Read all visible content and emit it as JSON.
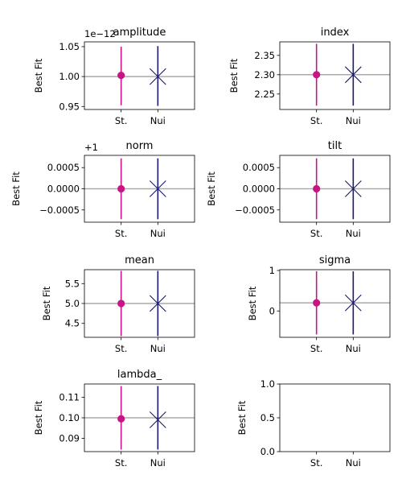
{
  "colors": {
    "standard": "#c71585",
    "nuisance": "#191970",
    "reference": "#aaaaaa",
    "axes": "#000000"
  },
  "chart_data": [
    {
      "type": "scatter",
      "title": "amplitude",
      "ylabel": "Best Fit",
      "categories": [
        "St.",
        "Nui"
      ],
      "reference": 1.0,
      "ylim": [
        0.945,
        1.058
      ],
      "offset_label": "1e−12",
      "yticks": [
        0.95,
        1.0,
        1.05
      ],
      "ytick_labels": [
        "0.95",
        "1.00",
        "1.05"
      ],
      "series": [
        {
          "name": "St.",
          "value": 1.002,
          "err_low": 0.952,
          "err_high": 1.05
        },
        {
          "name": "Nui",
          "value": 1.0,
          "err_low": 0.951,
          "err_high": 1.051
        }
      ]
    },
    {
      "type": "scatter",
      "title": "index",
      "ylabel": "Best Fit",
      "categories": [
        "St.",
        "Nui"
      ],
      "reference": 2.3,
      "ylim": [
        2.21,
        2.385
      ],
      "yticks": [
        2.25,
        2.3,
        2.35
      ],
      "ytick_labels": [
        "2.25",
        "2.30",
        "2.35"
      ],
      "series": [
        {
          "name": "St.",
          "value": 2.3,
          "err_low": 2.22,
          "err_high": 2.38
        },
        {
          "name": "Nui",
          "value": 2.3,
          "err_low": 2.22,
          "err_high": 2.38
        }
      ]
    },
    {
      "type": "scatter",
      "title": "norm",
      "ylabel": "Best Fit",
      "categories": [
        "St.",
        "Nui"
      ],
      "reference": 0.0,
      "ylim": [
        -0.00079,
        0.00079
      ],
      "offset_label": "+1",
      "yticks": [
        -0.0005,
        0.0,
        0.0005
      ],
      "ytick_labels": [
        "−0.0005",
        "0.0000",
        "0.0005"
      ],
      "series": [
        {
          "name": "St.",
          "value": 0.0,
          "err_low": -0.00072,
          "err_high": 0.00072
        },
        {
          "name": "Nui",
          "value": 0.0,
          "err_low": -0.00072,
          "err_high": 0.00072
        }
      ]
    },
    {
      "type": "scatter",
      "title": "tilt",
      "ylabel": "Best Fit",
      "categories": [
        "St.",
        "Nui"
      ],
      "reference": 0.0,
      "ylim": [
        -0.00079,
        0.00079
      ],
      "yticks": [
        -0.0005,
        0.0,
        0.0005
      ],
      "ytick_labels": [
        "−0.0005",
        "0.0000",
        "0.0005"
      ],
      "series": [
        {
          "name": "St.",
          "value": 0.0,
          "err_low": -0.00072,
          "err_high": 0.00072
        },
        {
          "name": "Nui",
          "value": 0.0,
          "err_low": -0.00072,
          "err_high": 0.00072
        }
      ]
    },
    {
      "type": "scatter",
      "title": "mean",
      "ylabel": "Best Fit",
      "categories": [
        "St.",
        "Nui"
      ],
      "reference": 5.0,
      "ylim": [
        4.15,
        5.85
      ],
      "yticks": [
        4.5,
        5.0,
        5.5
      ],
      "ytick_labels": [
        "4.5",
        "5.0",
        "5.5"
      ],
      "series": [
        {
          "name": "St.",
          "value": 5.0,
          "err_low": 4.18,
          "err_high": 5.82
        },
        {
          "name": "Nui",
          "value": 5.0,
          "err_low": 4.18,
          "err_high": 5.82
        }
      ]
    },
    {
      "type": "scatter",
      "title": "sigma",
      "ylabel": "Best Fit",
      "categories": [
        "St.",
        "Nui"
      ],
      "reference": 0.2,
      "ylim": [
        -0.65,
        1.02
      ],
      "yticks": [
        0,
        1
      ],
      "ytick_labels": [
        "0",
        "1"
      ],
      "series": [
        {
          "name": "St.",
          "value": 0.2,
          "err_low": -0.58,
          "err_high": 0.98
        },
        {
          "name": "Nui",
          "value": 0.2,
          "err_low": -0.58,
          "err_high": 0.98
        }
      ]
    },
    {
      "type": "scatter",
      "title": "lambda_",
      "ylabel": "Best Fit",
      "categories": [
        "St.",
        "Nui"
      ],
      "reference": 0.1,
      "ylim": [
        0.0835,
        0.1165
      ],
      "yticks": [
        0.09,
        0.1,
        0.11
      ],
      "ytick_labels": [
        "0.09",
        "0.10",
        "0.11"
      ],
      "series": [
        {
          "name": "St.",
          "value": 0.0995,
          "err_low": 0.0845,
          "err_high": 0.1155
        },
        {
          "name": "Nui",
          "value": 0.099,
          "err_low": 0.0845,
          "err_high": 0.1155
        }
      ]
    },
    {
      "type": "scatter",
      "title": "",
      "ylabel": "Best Fit",
      "categories": [
        "St.",
        "Nui"
      ],
      "ylim": [
        0.0,
        1.0
      ],
      "yticks": [
        0.0,
        0.5,
        1.0
      ],
      "ytick_labels": [
        "0.0",
        "0.5",
        "1.0"
      ],
      "series": []
    }
  ]
}
